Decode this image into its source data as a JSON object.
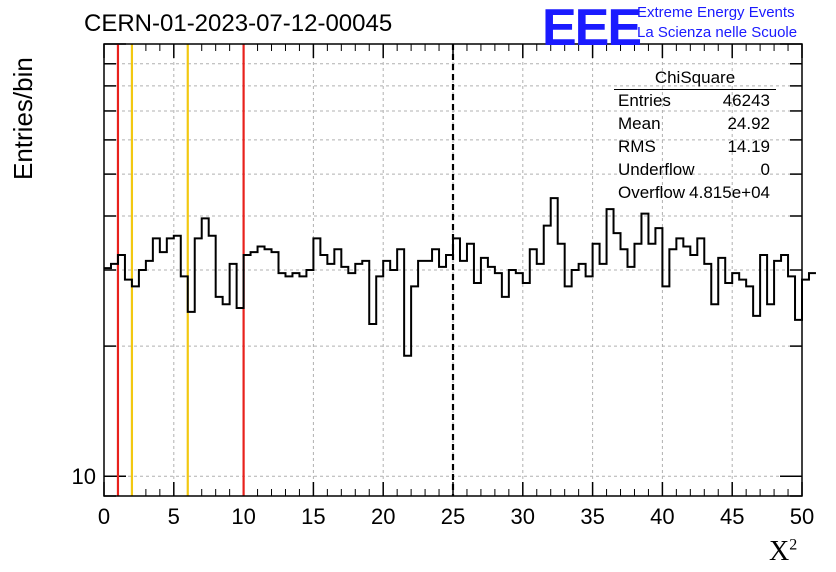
{
  "title": "CERN-01-2023-07-12-00045",
  "logo": {
    "mark": "EEE",
    "line1": "Extreme Energy Events",
    "line2": "La Scienza nelle Scuole"
  },
  "stats": {
    "title": "ChiSquare",
    "rows": [
      {
        "key": "Entries",
        "value": "46243"
      },
      {
        "key": "Mean",
        "value": "24.92"
      },
      {
        "key": "RMS",
        "value": "14.19"
      },
      {
        "key": "Underflow",
        "value": "0"
      },
      {
        "key": "Overflow",
        "value": "4.815e+04"
      }
    ]
  },
  "chart_data": {
    "type": "histogram",
    "title": "CERN-01-2023-07-12-00045",
    "xlabel": "X",
    "xlabel_superscript": "2",
    "ylabel": "Entries/bin",
    "xlim": [
      0,
      50
    ],
    "ylim": [
      9,
      100
    ],
    "yscale": "log",
    "bin_width": 0.5,
    "x_ticks": [
      "0",
      "5",
      "10",
      "15",
      "20",
      "25",
      "30",
      "35",
      "40",
      "45",
      "50"
    ],
    "y_tick_labels": [
      {
        "value": 10,
        "label": "10"
      }
    ],
    "grid": true,
    "values": [
      30.3,
      31,
      32.5,
      28.5,
      27.5,
      30,
      31.5,
      35.5,
      33,
      35.5,
      36,
      29,
      24,
      35.5,
      39.5,
      36,
      26,
      25,
      31,
      24.5,
      32.5,
      33,
      34,
      33.5,
      33,
      29.5,
      29,
      29.5,
      29,
      30,
      35.5,
      32.5,
      31,
      33.5,
      30.5,
      29.5,
      31,
      31.5,
      22.5,
      29,
      31.5,
      30,
      33.5,
      19,
      27.5,
      31.5,
      31.5,
      33.5,
      30.5,
      32.5,
      35.5,
      31.5,
      34.5,
      28,
      32,
      30.5,
      29.5,
      26,
      30,
      29.5,
      28,
      33.5,
      31,
      38,
      44,
      34.5,
      27.5,
      30,
      31,
      29,
      34.5,
      31,
      41.5,
      36.5,
      33.5,
      30.5,
      34.5,
      40.5,
      34.5,
      37.5,
      27.5,
      33.5,
      35.5,
      34,
      32.5,
      35.5,
      31,
      25,
      32,
      28,
      29.5,
      28.5,
      27.5,
      23.5,
      32.5,
      25,
      31.5,
      32.5,
      29,
      23,
      28.5,
      29.5
    ],
    "vertical_lines": [
      {
        "x": 1,
        "color": "#e8211c",
        "style": "solid"
      },
      {
        "x": 2,
        "color": "#f2c811",
        "style": "solid"
      },
      {
        "x": 6,
        "color": "#f2c811",
        "style": "solid"
      },
      {
        "x": 10,
        "color": "#e8211c",
        "style": "solid"
      },
      {
        "x": 25,
        "color": "#000000",
        "style": "dashed"
      }
    ]
  }
}
